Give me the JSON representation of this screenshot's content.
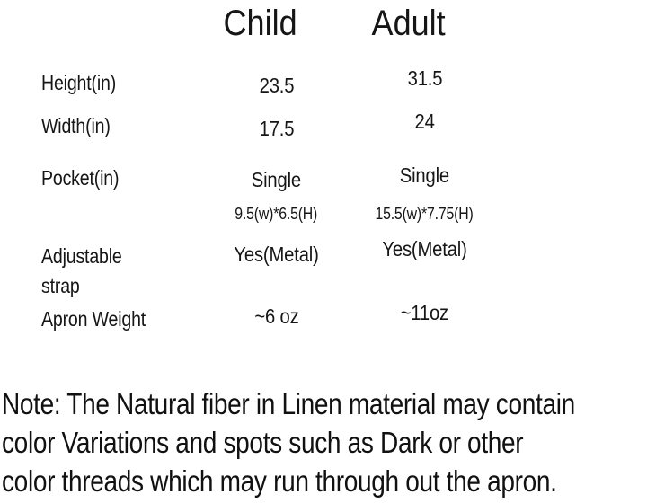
{
  "size_chart": {
    "columns": [
      {
        "label": "Child"
      },
      {
        "label": "Adult"
      }
    ],
    "rows": [
      {
        "label": "Height(in)",
        "child": "23.5",
        "adult": "31.5"
      },
      {
        "label": "Width(in)",
        "child": "17.5",
        "adult": "24"
      },
      {
        "label": "Pocket(in)",
        "child": "Single",
        "adult": "Single",
        "child_detail": "9.5(w)*6.5(H)",
        "adult_detail": "15.5(w)*7.75(H)"
      },
      {
        "label": "Adjustable strap",
        "child": "Yes(Metal)",
        "adult": "Yes(Metal)"
      },
      {
        "label": "Apron Weight",
        "child": "~6 oz",
        "adult": "~11oz"
      }
    ]
  },
  "note": {
    "lines": [
      "Note: The Natural fiber in Linen material may contain",
      "color Variations and spots such as Dark or other",
      "color threads which may run through out the apron."
    ]
  },
  "colors": {
    "text": "#161616",
    "background": "#ffffff"
  }
}
